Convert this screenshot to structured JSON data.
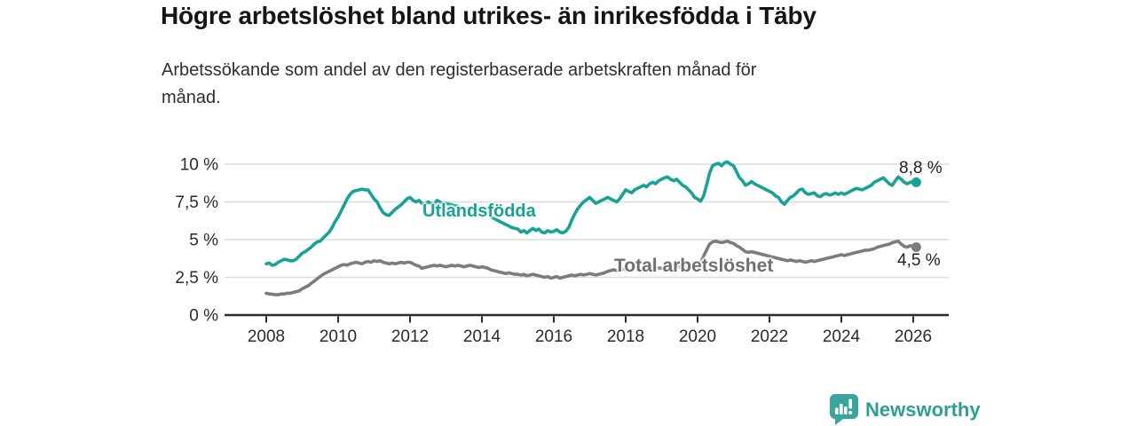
{
  "header": {
    "title": "Högre arbetslöshet bland utrikes- än inrikesfödda i Täby",
    "subtitle_line1": "Arbetssökande som andel av den registerbaserade arbetskraften månad för",
    "subtitle_line2": "månad."
  },
  "chart_data": {
    "type": "line",
    "title": "Högre arbetslöshet bland utrikes- än inrikesfödda i Täby",
    "subtitle": "Arbetssökande som andel av den registerbaserade arbetskraften månad för månad.",
    "grid": true,
    "ylim": [
      0,
      10
    ],
    "x_start": 2008,
    "x_points_per_year": 12,
    "x_ticks": [
      "2008",
      "2010",
      "2012",
      "2014",
      "2016",
      "2018",
      "2020",
      "2022",
      "2024",
      "2026"
    ],
    "y_ticks": [
      {
        "value": 0,
        "label": "0 %"
      },
      {
        "value": 2.5,
        "label": "2,5 %"
      },
      {
        "value": 5,
        "label": "5 %"
      },
      {
        "value": 7.5,
        "label": "7,5 %"
      },
      {
        "value": 10,
        "label": "10 %"
      }
    ],
    "series": [
      {
        "name": "Utlandsfödda",
        "color": "#17a295",
        "end_label": "8,8 %",
        "end_value": 8.8,
        "values": [
          3.4,
          3.45,
          3.3,
          3.35,
          3.5,
          3.6,
          3.7,
          3.65,
          3.6,
          3.6,
          3.7,
          3.9,
          4.1,
          4.2,
          4.35,
          4.5,
          4.7,
          4.85,
          4.9,
          5.1,
          5.3,
          5.5,
          5.8,
          6.2,
          6.5,
          6.9,
          7.3,
          7.7,
          8.0,
          8.2,
          8.25,
          8.3,
          8.35,
          8.3,
          8.3,
          8.0,
          7.7,
          7.5,
          7.1,
          6.8,
          6.65,
          6.6,
          6.8,
          7.0,
          7.15,
          7.3,
          7.5,
          7.7,
          7.8,
          7.6,
          7.5,
          7.6,
          7.4,
          7.3,
          7.5,
          7.4,
          7.3,
          7.6,
          7.5,
          7.4,
          7.4,
          7.35,
          7.3,
          7.25,
          7.2,
          7.1,
          7.0,
          7.05,
          7.1,
          7.0,
          6.9,
          6.8,
          6.9,
          6.8,
          6.7,
          6.55,
          6.4,
          6.3,
          6.2,
          6.1,
          6.0,
          5.9,
          5.8,
          5.75,
          5.7,
          5.5,
          5.6,
          5.45,
          5.6,
          5.75,
          5.6,
          5.7,
          5.5,
          5.45,
          5.6,
          5.5,
          5.55,
          5.65,
          5.5,
          5.45,
          5.55,
          5.8,
          6.3,
          6.7,
          7.05,
          7.3,
          7.5,
          7.65,
          7.8,
          7.6,
          7.4,
          7.5,
          7.6,
          7.7,
          7.8,
          7.7,
          7.6,
          7.5,
          7.7,
          8.0,
          8.3,
          8.2,
          8.1,
          8.3,
          8.4,
          8.5,
          8.6,
          8.5,
          8.7,
          8.8,
          8.7,
          8.9,
          9.0,
          9.1,
          9.15,
          9.0,
          8.9,
          9.0,
          8.8,
          8.6,
          8.5,
          8.3,
          8.1,
          7.8,
          7.7,
          7.55,
          7.9,
          8.6,
          9.4,
          9.9,
          10.0,
          10.05,
          9.9,
          10.1,
          10.15,
          10.0,
          9.9,
          9.5,
          9.1,
          8.9,
          8.6,
          8.7,
          8.85,
          8.7,
          8.6,
          8.5,
          8.4,
          8.3,
          8.2,
          8.1,
          7.9,
          7.8,
          7.5,
          7.35,
          7.6,
          7.8,
          7.9,
          8.1,
          8.3,
          8.35,
          8.1,
          8.0,
          8.05,
          8.1,
          7.9,
          7.85,
          8.0,
          8.05,
          7.95,
          8.0,
          8.1,
          8.0,
          8.1,
          8.0,
          8.1,
          8.2,
          8.3,
          8.4,
          8.35,
          8.3,
          8.4,
          8.5,
          8.6,
          8.8,
          8.9,
          9.0,
          9.1,
          8.9,
          8.7,
          8.6,
          8.9,
          9.15,
          9.0,
          8.8,
          8.7,
          8.8,
          8.85,
          8.8
        ]
      },
      {
        "name": "Total arbetslöshet",
        "color": "#7c7c7c",
        "end_label": "4,5 %",
        "end_value": 4.5,
        "values": [
          1.45,
          1.4,
          1.38,
          1.35,
          1.35,
          1.4,
          1.4,
          1.45,
          1.45,
          1.5,
          1.55,
          1.6,
          1.75,
          1.85,
          1.95,
          2.1,
          2.25,
          2.4,
          2.55,
          2.7,
          2.8,
          2.9,
          3.0,
          3.1,
          3.2,
          3.3,
          3.35,
          3.3,
          3.4,
          3.45,
          3.5,
          3.45,
          3.4,
          3.5,
          3.55,
          3.5,
          3.6,
          3.55,
          3.6,
          3.5,
          3.45,
          3.4,
          3.45,
          3.4,
          3.45,
          3.5,
          3.45,
          3.5,
          3.5,
          3.4,
          3.3,
          3.25,
          3.1,
          3.15,
          3.2,
          3.25,
          3.3,
          3.25,
          3.3,
          3.25,
          3.2,
          3.25,
          3.3,
          3.25,
          3.3,
          3.25,
          3.2,
          3.25,
          3.3,
          3.25,
          3.2,
          3.15,
          3.2,
          3.15,
          3.1,
          3.0,
          2.95,
          2.9,
          2.85,
          2.8,
          2.75,
          2.8,
          2.75,
          2.7,
          2.7,
          2.65,
          2.7,
          2.6,
          2.65,
          2.7,
          2.65,
          2.6,
          2.55,
          2.5,
          2.55,
          2.45,
          2.5,
          2.55,
          2.45,
          2.5,
          2.55,
          2.6,
          2.65,
          2.6,
          2.65,
          2.7,
          2.65,
          2.7,
          2.75,
          2.7,
          2.65,
          2.7,
          2.75,
          2.8,
          2.9,
          2.95,
          3.0,
          2.95,
          3.0,
          3.05,
          3.0,
          3.02,
          3.05,
          3.08,
          3.1,
          3.05,
          3.05,
          3.1,
          3.1,
          3.12,
          3.15,
          3.12,
          3.1,
          3.12,
          3.15,
          3.2,
          3.15,
          3.18,
          3.2,
          3.22,
          3.25,
          3.3,
          3.35,
          3.38,
          3.4,
          3.5,
          3.9,
          4.3,
          4.7,
          4.85,
          4.9,
          4.85,
          4.8,
          4.85,
          4.9,
          4.8,
          4.75,
          4.6,
          4.5,
          4.35,
          4.2,
          4.15,
          4.2,
          4.15,
          4.1,
          4.05,
          4.0,
          3.95,
          3.9,
          3.85,
          3.8,
          3.75,
          3.7,
          3.65,
          3.6,
          3.65,
          3.6,
          3.55,
          3.6,
          3.55,
          3.5,
          3.55,
          3.6,
          3.55,
          3.6,
          3.65,
          3.7,
          3.75,
          3.8,
          3.85,
          3.9,
          3.95,
          4.0,
          3.95,
          4.0,
          4.05,
          4.1,
          4.15,
          4.2,
          4.25,
          4.3,
          4.3,
          4.35,
          4.4,
          4.5,
          4.55,
          4.6,
          4.65,
          4.7,
          4.8,
          4.85,
          4.9,
          4.7,
          4.55,
          4.5,
          4.6,
          4.55,
          4.5
        ]
      }
    ],
    "legend_position": "inline-labels"
  },
  "footer": {
    "brand": "Newsworthy",
    "brand_color": "#2d9e97",
    "logo_icon": "bar-chart-speech-bubble"
  }
}
